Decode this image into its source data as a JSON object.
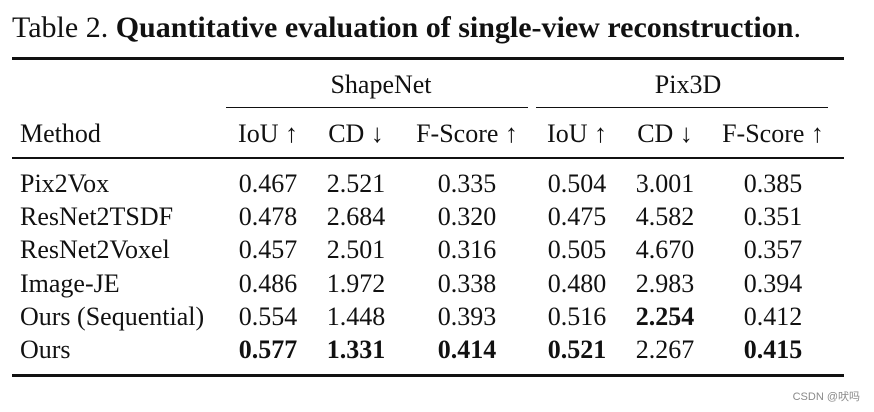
{
  "caption": {
    "label": "Table 2.",
    "title": "Quantitative evaluation of single-view reconstruction",
    "end": "."
  },
  "groups": [
    {
      "label": "ShapeNet"
    },
    {
      "label": "Pix3D"
    }
  ],
  "columns": [
    "Method",
    "IoU ↑",
    "CD ↓",
    "F-Score ↑",
    "IoU ↑",
    "CD ↓",
    "F-Score ↑"
  ],
  "rows": [
    {
      "method": "Pix2Vox",
      "values": [
        "0.467",
        "2.521",
        "0.335",
        "0.504",
        "3.001",
        "0.385"
      ],
      "bold": [
        false,
        false,
        false,
        false,
        false,
        false
      ]
    },
    {
      "method": "ResNet2TSDF",
      "values": [
        "0.478",
        "2.684",
        "0.320",
        "0.475",
        "4.582",
        "0.351"
      ],
      "bold": [
        false,
        false,
        false,
        false,
        false,
        false
      ]
    },
    {
      "method": "ResNet2Voxel",
      "values": [
        "0.457",
        "2.501",
        "0.316",
        "0.505",
        "4.670",
        "0.357"
      ],
      "bold": [
        false,
        false,
        false,
        false,
        false,
        false
      ]
    },
    {
      "method": "Image-JE",
      "values": [
        "0.486",
        "1.972",
        "0.338",
        "0.480",
        "2.983",
        "0.394"
      ],
      "bold": [
        false,
        false,
        false,
        false,
        false,
        false
      ]
    },
    {
      "method": "Ours (Sequential)",
      "values": [
        "0.554",
        "1.448",
        "0.393",
        "0.516",
        "2.254",
        "0.412"
      ],
      "bold": [
        false,
        false,
        false,
        false,
        true,
        false
      ]
    },
    {
      "method": "Ours",
      "values": [
        "0.577",
        "1.331",
        "0.414",
        "0.521",
        "2.267",
        "0.415"
      ],
      "bold": [
        true,
        true,
        true,
        true,
        false,
        true
      ]
    }
  ],
  "watermark": "CSDN @吠吗"
}
